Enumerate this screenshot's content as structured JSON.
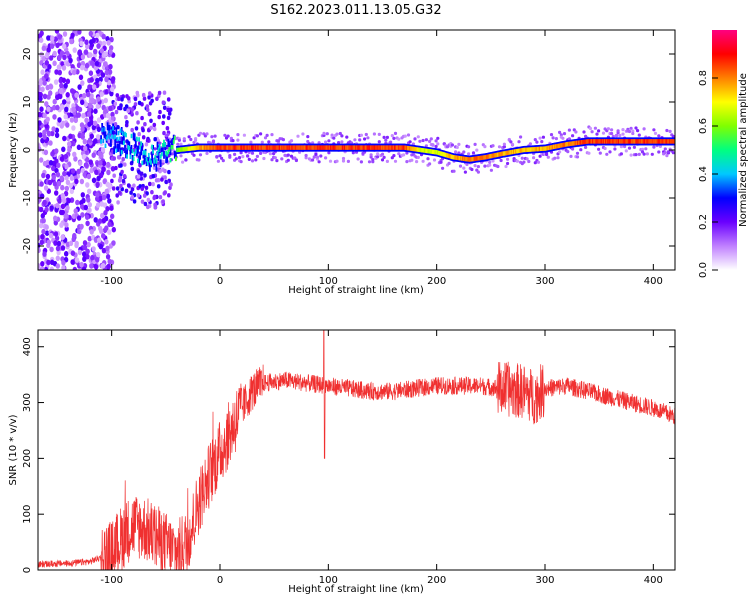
{
  "title": "S162.2023.011.13.05.G32",
  "chart_data": [
    {
      "type": "heatmap",
      "xlabel": "Height of straight line (km)",
      "ylabel": "Frequency (Hz)",
      "xlim": [
        -168,
        420
      ],
      "ylim": [
        -25,
        25
      ],
      "x_ticks": [
        -100,
        0,
        100,
        200,
        300,
        400
      ],
      "y_ticks": [
        -20,
        -10,
        0,
        10,
        20
      ],
      "colorbar": {
        "label": "Normalized spectral amplitude",
        "range": [
          0,
          1
        ],
        "ticks": [
          "0.0",
          "0.2",
          "0.4",
          "0.6",
          "0.8"
        ],
        "colors": [
          "#ffffff",
          "#c080ff",
          "#6a00ff",
          "#0000ff",
          "#00c8ff",
          "#00ff80",
          "#80ff00",
          "#ffff00",
          "#ff8000",
          "#ff0000",
          "#ff0080"
        ]
      },
      "ridge": [
        {
          "x": -100,
          "y": 2.5,
          "amp": 0.4
        },
        {
          "x": -80,
          "y": 0.5,
          "amp": 0.45
        },
        {
          "x": -60,
          "y": -2,
          "amp": 0.45
        },
        {
          "x": -50,
          "y": 0.5,
          "amp": 0.5
        },
        {
          "x": -40,
          "y": 0,
          "amp": 0.6
        },
        {
          "x": -20,
          "y": 0.5,
          "amp": 0.8
        },
        {
          "x": 0,
          "y": 0.5,
          "amp": 0.9
        },
        {
          "x": 100,
          "y": 0.5,
          "amp": 0.9
        },
        {
          "x": 170,
          "y": 0.5,
          "amp": 0.9
        },
        {
          "x": 185,
          "y": 0,
          "amp": 0.7
        },
        {
          "x": 200,
          "y": -0.5,
          "amp": 0.7
        },
        {
          "x": 215,
          "y": -1.5,
          "amp": 0.8
        },
        {
          "x": 230,
          "y": -2,
          "amp": 0.85
        },
        {
          "x": 245,
          "y": -1.5,
          "amp": 0.85
        },
        {
          "x": 260,
          "y": -0.8,
          "amp": 0.8
        },
        {
          "x": 280,
          "y": 0,
          "amp": 0.8
        },
        {
          "x": 300,
          "y": 0.3,
          "amp": 0.8
        },
        {
          "x": 320,
          "y": 1.2,
          "amp": 0.85
        },
        {
          "x": 340,
          "y": 1.8,
          "amp": 0.9
        },
        {
          "x": 380,
          "y": 1.8,
          "amp": 0.9
        },
        {
          "x": 420,
          "y": 1.8,
          "amp": 0.9
        }
      ]
    },
    {
      "type": "line",
      "xlabel": "Height of straight line (km)",
      "ylabel": "SNR (10 * v/v)",
      "xlim": [
        -168,
        420
      ],
      "ylim": [
        0,
        430
      ],
      "x_ticks": [
        -100,
        0,
        100,
        200,
        300,
        400
      ],
      "y_ticks": [
        0,
        100,
        200,
        300,
        400
      ],
      "color": "#f03030",
      "series": [
        {
          "x": [
            -168,
            -140,
            -120,
            -100,
            -90,
            -80,
            -70,
            -60,
            -50,
            -40,
            -30,
            -20,
            -10,
            0,
            10,
            20,
            30,
            40,
            60,
            80,
            100,
            120,
            140,
            160,
            180,
            200,
            220,
            240,
            260,
            280,
            290,
            300,
            320,
            340,
            360,
            380,
            400,
            420
          ],
          "values": [
            10,
            12,
            15,
            30,
            60,
            80,
            75,
            60,
            45,
            30,
            50,
            120,
            170,
            210,
            250,
            290,
            320,
            335,
            340,
            335,
            330,
            325,
            320,
            320,
            325,
            330,
            330,
            330,
            325,
            320,
            310,
            325,
            330,
            320,
            310,
            300,
            290,
            275
          ]
        }
      ]
    }
  ]
}
